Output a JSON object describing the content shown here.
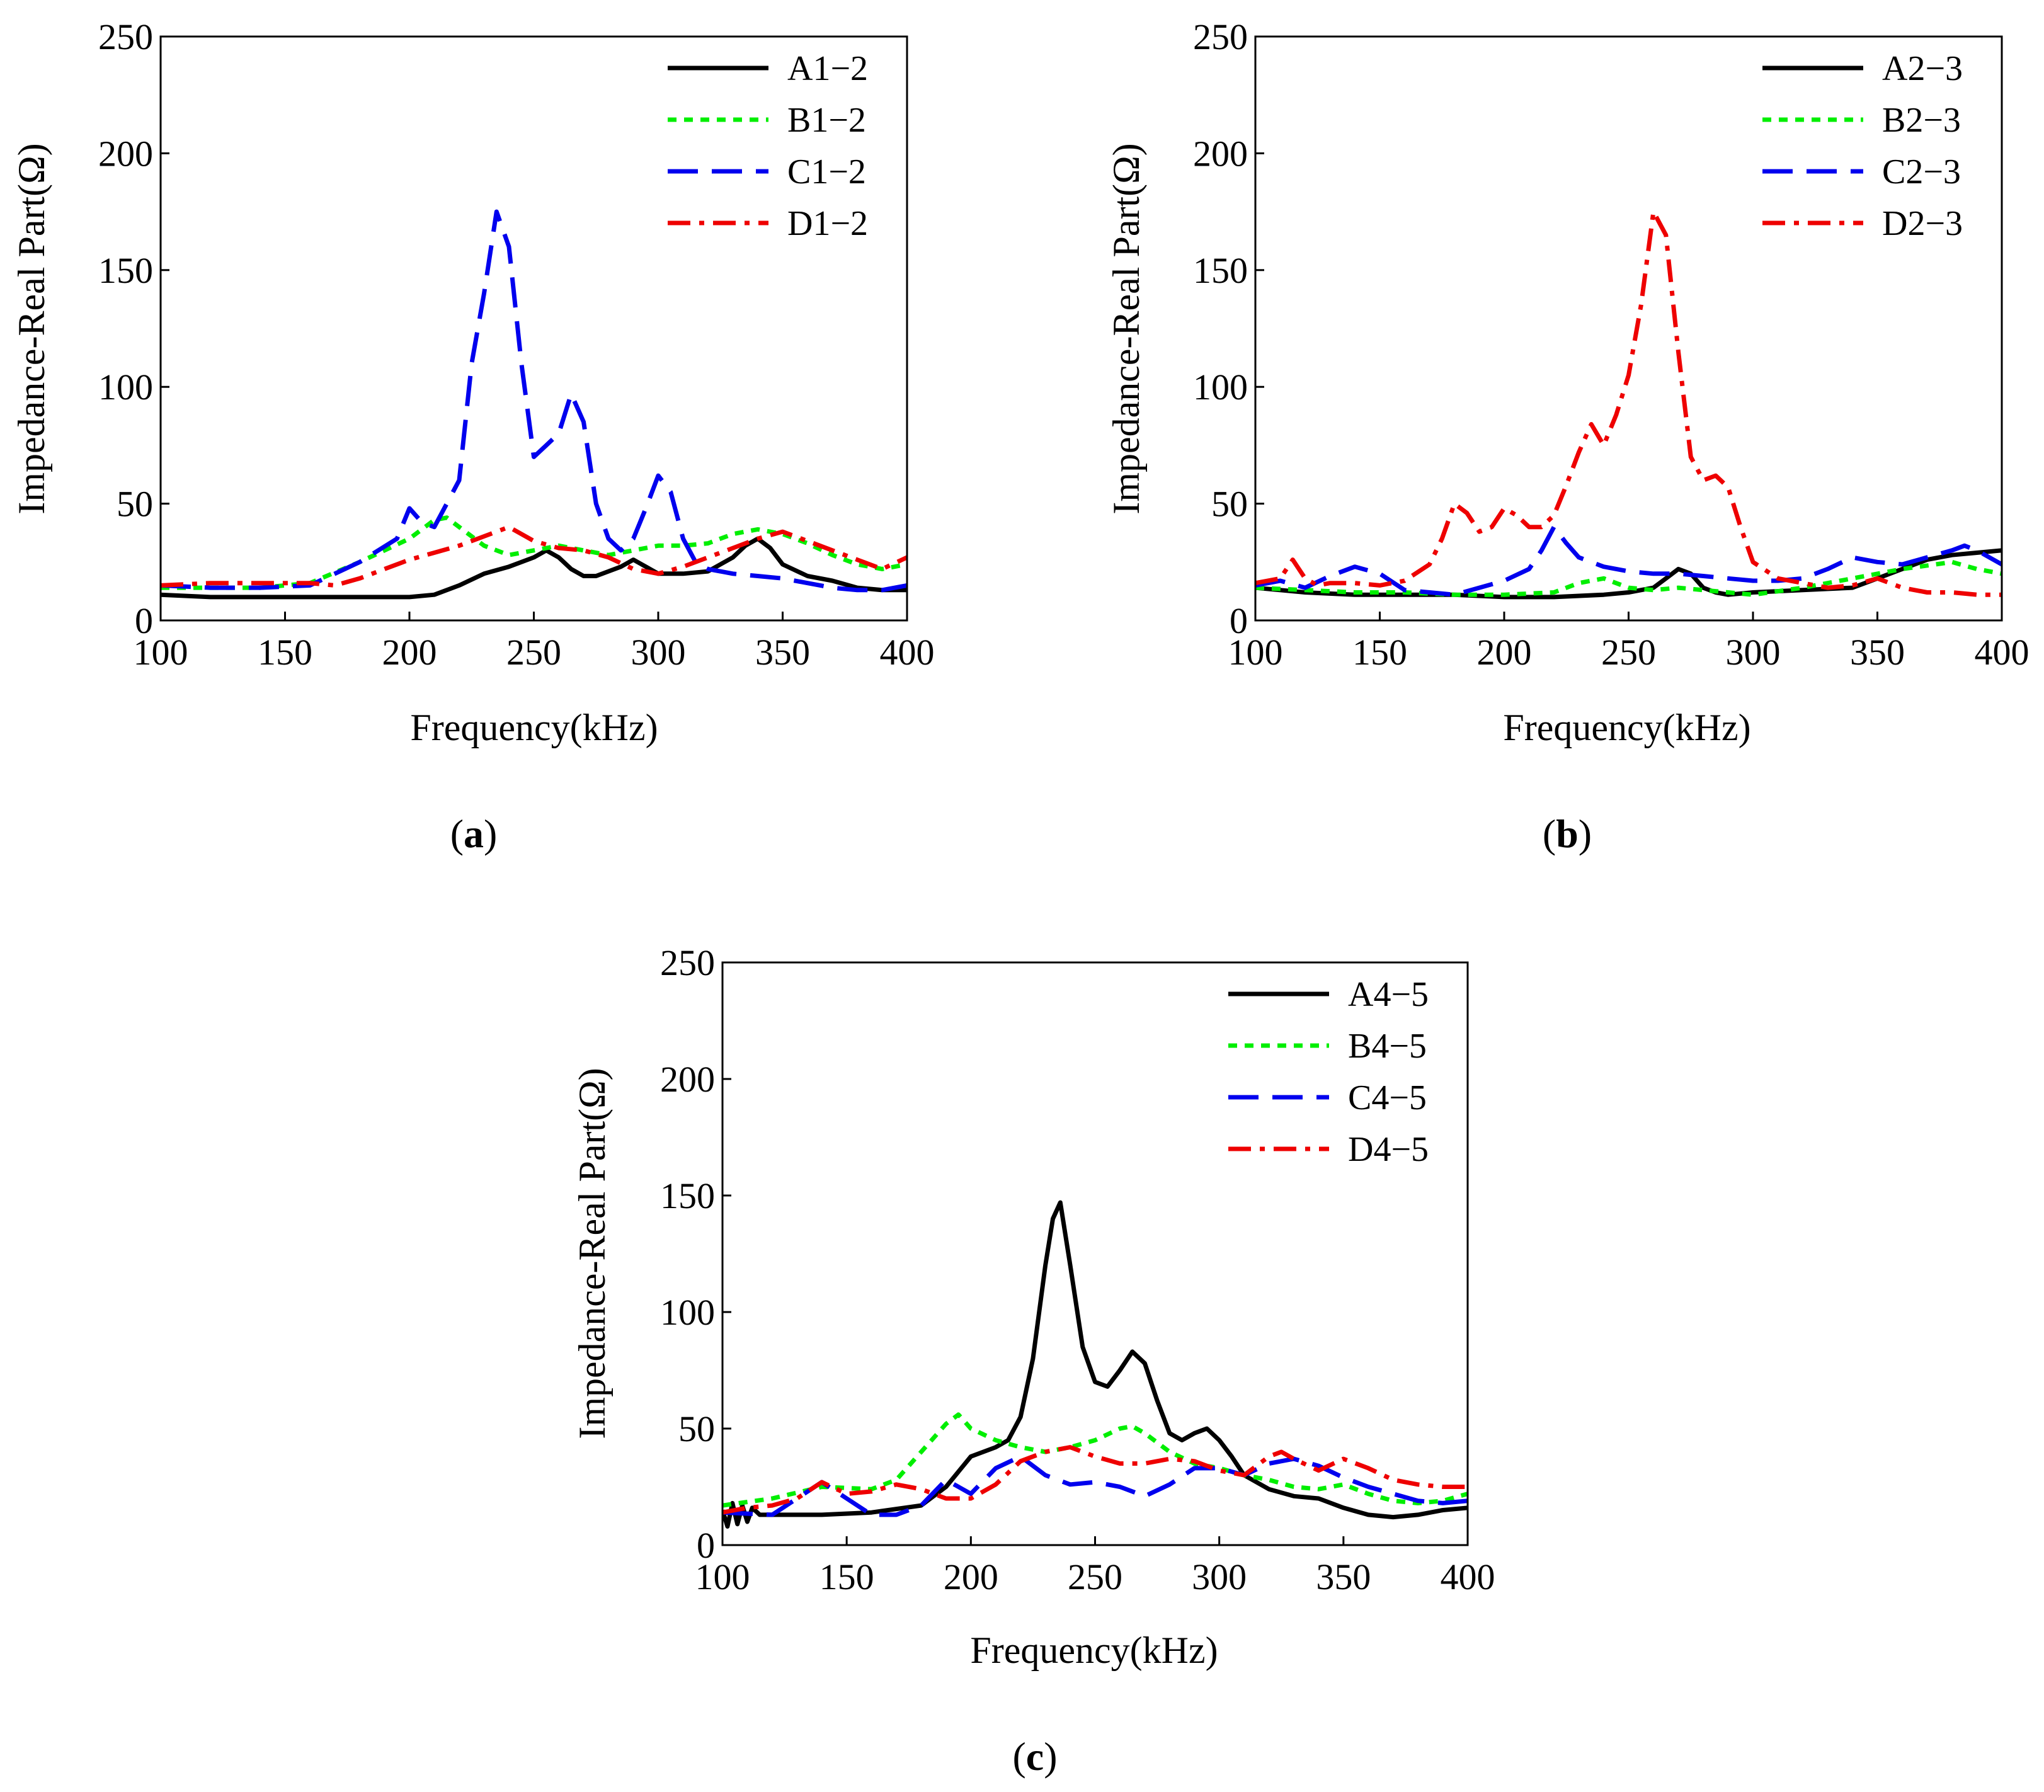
{
  "chart_data": [
    {
      "type": "line",
      "panel_label": "a",
      "caption": "(a)",
      "xlabel": "Frequency(kHz)",
      "ylabel": "Impedance-Real Part(Ω)",
      "xlim": [
        100,
        400
      ],
      "ylim": [
        0,
        250
      ],
      "xticks": [
        100,
        150,
        200,
        250,
        300,
        350,
        400
      ],
      "yticks": [
        0,
        50,
        100,
        150,
        200,
        250
      ],
      "legend_position": "top-right",
      "series": [
        {
          "name": "A1−2",
          "color": "#000000",
          "style": "solid",
          "x": [
            100,
            120,
            140,
            160,
            180,
            200,
            210,
            220,
            230,
            240,
            250,
            255,
            260,
            265,
            270,
            275,
            280,
            285,
            290,
            295,
            300,
            310,
            320,
            330,
            335,
            340,
            345,
            350,
            360,
            370,
            380,
            390,
            400
          ],
          "y": [
            11,
            10,
            10,
            10,
            10,
            10,
            11,
            15,
            20,
            23,
            27,
            30,
            27,
            22,
            19,
            19,
            21,
            23,
            26,
            23,
            20,
            20,
            21,
            27,
            32,
            35,
            31,
            24,
            19,
            17,
            14,
            13,
            13
          ]
        },
        {
          "name": "B1−2",
          "color": "#00EE00",
          "style": "dotted",
          "x": [
            100,
            120,
            140,
            160,
            180,
            200,
            210,
            215,
            220,
            230,
            240,
            250,
            260,
            270,
            280,
            290,
            300,
            310,
            320,
            330,
            340,
            350,
            360,
            370,
            380,
            390,
            400
          ],
          "y": [
            14,
            14,
            14,
            16,
            25,
            35,
            43,
            44,
            40,
            32,
            28,
            30,
            32,
            30,
            28,
            30,
            32,
            32,
            33,
            37,
            39,
            37,
            33,
            28,
            24,
            22,
            24
          ]
        },
        {
          "name": "C1−2",
          "color": "#0000EE",
          "style": "dashed",
          "x": [
            100,
            120,
            140,
            160,
            180,
            195,
            200,
            205,
            210,
            215,
            220,
            225,
            230,
            235,
            240,
            245,
            250,
            255,
            260,
            265,
            270,
            275,
            280,
            285,
            290,
            295,
            300,
            305,
            310,
            315,
            320,
            330,
            340,
            350,
            360,
            370,
            380,
            390,
            400
          ],
          "y": [
            15,
            14,
            14,
            15,
            25,
            35,
            48,
            42,
            40,
            50,
            60,
            110,
            140,
            175,
            160,
            110,
            70,
            75,
            80,
            97,
            85,
            50,
            35,
            30,
            35,
            48,
            62,
            55,
            35,
            25,
            22,
            20,
            19,
            18,
            16,
            14,
            13,
            13,
            15
          ]
        },
        {
          "name": "D1−2",
          "color": "#EE0000",
          "style": "dashdot",
          "x": [
            100,
            120,
            140,
            160,
            170,
            180,
            190,
            200,
            210,
            220,
            230,
            240,
            250,
            260,
            270,
            280,
            290,
            300,
            310,
            320,
            330,
            340,
            350,
            360,
            370,
            380,
            390,
            400
          ],
          "y": [
            15,
            16,
            16,
            16,
            15,
            18,
            22,
            26,
            29,
            32,
            36,
            40,
            34,
            31,
            30,
            27,
            22,
            20,
            23,
            27,
            31,
            35,
            38,
            34,
            30,
            26,
            22,
            27
          ]
        }
      ]
    },
    {
      "type": "line",
      "panel_label": "b",
      "caption": "(b)",
      "xlabel": "Frequency(kHz)",
      "ylabel": "Impedance-Real Part(Ω)",
      "xlim": [
        100,
        400
      ],
      "ylim": [
        0,
        250
      ],
      "xticks": [
        100,
        150,
        200,
        250,
        300,
        350,
        400
      ],
      "yticks": [
        0,
        50,
        100,
        150,
        200,
        250
      ],
      "legend_position": "top-right",
      "series": [
        {
          "name": "A2−3",
          "color": "#000000",
          "style": "solid",
          "x": [
            100,
            120,
            140,
            160,
            180,
            200,
            220,
            240,
            250,
            260,
            265,
            270,
            275,
            280,
            285,
            290,
            300,
            320,
            340,
            350,
            360,
            370,
            380,
            390,
            400
          ],
          "y": [
            14,
            12,
            11,
            11,
            11,
            10,
            10,
            11,
            12,
            14,
            18,
            22,
            20,
            14,
            12,
            11,
            12,
            13,
            14,
            18,
            22,
            26,
            28,
            29,
            30
          ]
        },
        {
          "name": "B2−3",
          "color": "#00EE00",
          "style": "dotted",
          "x": [
            100,
            120,
            140,
            160,
            180,
            200,
            220,
            230,
            240,
            250,
            260,
            270,
            280,
            290,
            300,
            320,
            340,
            360,
            380,
            390,
            400
          ],
          "y": [
            14,
            13,
            12,
            12,
            11,
            11,
            12,
            16,
            18,
            14,
            13,
            14,
            13,
            12,
            11,
            14,
            18,
            22,
            25,
            22,
            20
          ]
        },
        {
          "name": "C2−3",
          "color": "#0000EE",
          "style": "dashed",
          "x": [
            100,
            110,
            120,
            130,
            140,
            150,
            160,
            170,
            180,
            190,
            200,
            210,
            215,
            220,
            225,
            230,
            240,
            250,
            260,
            270,
            280,
            290,
            300,
            310,
            320,
            330,
            340,
            350,
            360,
            370,
            380,
            385,
            390,
            400
          ],
          "y": [
            15,
            17,
            14,
            19,
            23,
            20,
            13,
            12,
            11,
            14,
            17,
            22,
            30,
            40,
            33,
            27,
            23,
            21,
            20,
            20,
            19,
            18,
            17,
            17,
            18,
            22,
            27,
            25,
            24,
            27,
            30,
            32,
            30,
            24
          ]
        },
        {
          "name": "D2−3",
          "color": "#EE0000",
          "style": "dashdot",
          "x": [
            100,
            110,
            115,
            120,
            125,
            130,
            140,
            150,
            160,
            170,
            175,
            180,
            185,
            190,
            195,
            200,
            205,
            210,
            215,
            220,
            225,
            230,
            235,
            240,
            245,
            250,
            255,
            260,
            265,
            270,
            275,
            280,
            285,
            290,
            295,
            300,
            310,
            320,
            330,
            340,
            350,
            360,
            370,
            380,
            390,
            400
          ],
          "y": [
            16,
            18,
            26,
            18,
            15,
            16,
            16,
            15,
            17,
            24,
            35,
            50,
            46,
            38,
            40,
            48,
            45,
            40,
            40,
            45,
            58,
            72,
            84,
            75,
            88,
            105,
            135,
            175,
            165,
            115,
            70,
            60,
            62,
            57,
            40,
            25,
            18,
            16,
            14,
            15,
            18,
            14,
            12,
            12,
            11,
            11
          ]
        }
      ]
    },
    {
      "type": "line",
      "panel_label": "c",
      "caption": "(c)",
      "xlabel": "Frequency(kHz)",
      "ylabel": "Impedance-Real Part(Ω)",
      "xlim": [
        100,
        400
      ],
      "ylim": [
        0,
        250
      ],
      "xticks": [
        100,
        150,
        200,
        250,
        300,
        350,
        400
      ],
      "yticks": [
        0,
        50,
        100,
        150,
        200,
        250
      ],
      "legend_position": "top-right",
      "series": [
        {
          "name": "A4−5",
          "color": "#000000",
          "style": "solid",
          "x": [
            100,
            102,
            104,
            106,
            108,
            110,
            112,
            115,
            120,
            140,
            160,
            180,
            190,
            200,
            210,
            215,
            220,
            225,
            230,
            233,
            236,
            240,
            245,
            250,
            255,
            260,
            265,
            270,
            275,
            280,
            285,
            290,
            295,
            300,
            305,
            310,
            320,
            330,
            340,
            350,
            360,
            370,
            380,
            390,
            400
          ],
          "y": [
            15,
            8,
            18,
            9,
            17,
            10,
            16,
            13,
            13,
            13,
            14,
            17,
            25,
            38,
            42,
            45,
            55,
            80,
            120,
            140,
            147,
            120,
            85,
            70,
            68,
            75,
            83,
            78,
            62,
            48,
            45,
            48,
            50,
            45,
            38,
            30,
            24,
            21,
            20,
            16,
            13,
            12,
            13,
            15,
            16
          ]
        },
        {
          "name": "B4−5",
          "color": "#00EE00",
          "style": "dotted",
          "x": [
            100,
            120,
            140,
            160,
            170,
            180,
            190,
            195,
            200,
            210,
            220,
            230,
            240,
            250,
            260,
            265,
            270,
            280,
            290,
            300,
            310,
            320,
            330,
            340,
            350,
            360,
            370,
            380,
            390,
            400
          ],
          "y": [
            17,
            20,
            25,
            24,
            28,
            40,
            52,
            56,
            50,
            45,
            42,
            40,
            42,
            45,
            50,
            51,
            48,
            40,
            35,
            33,
            30,
            28,
            25,
            24,
            26,
            22,
            19,
            18,
            19,
            22
          ]
        },
        {
          "name": "C4−5",
          "color": "#0000EE",
          "style": "dashed",
          "x": [
            100,
            120,
            130,
            140,
            150,
            160,
            170,
            180,
            190,
            200,
            210,
            220,
            230,
            240,
            250,
            260,
            270,
            280,
            290,
            300,
            310,
            320,
            330,
            340,
            350,
            360,
            370,
            380,
            390,
            400
          ],
          "y": [
            14,
            13,
            20,
            27,
            20,
            13,
            13,
            17,
            28,
            22,
            33,
            38,
            30,
            26,
            27,
            25,
            21,
            26,
            33,
            33,
            30,
            35,
            37,
            34,
            29,
            25,
            22,
            19,
            18,
            19
          ]
        },
        {
          "name": "D4−5",
          "color": "#EE0000",
          "style": "dashdot",
          "x": [
            100,
            110,
            120,
            130,
            140,
            150,
            160,
            170,
            180,
            190,
            200,
            210,
            220,
            230,
            240,
            250,
            260,
            270,
            280,
            290,
            300,
            310,
            320,
            325,
            330,
            340,
            350,
            360,
            370,
            380,
            390,
            400
          ],
          "y": [
            14,
            16,
            17,
            20,
            27,
            22,
            23,
            26,
            24,
            20,
            20,
            26,
            36,
            40,
            42,
            38,
            35,
            35,
            37,
            36,
            32,
            30,
            38,
            40,
            37,
            32,
            37,
            33,
            28,
            26,
            25,
            25
          ]
        }
      ]
    }
  ]
}
